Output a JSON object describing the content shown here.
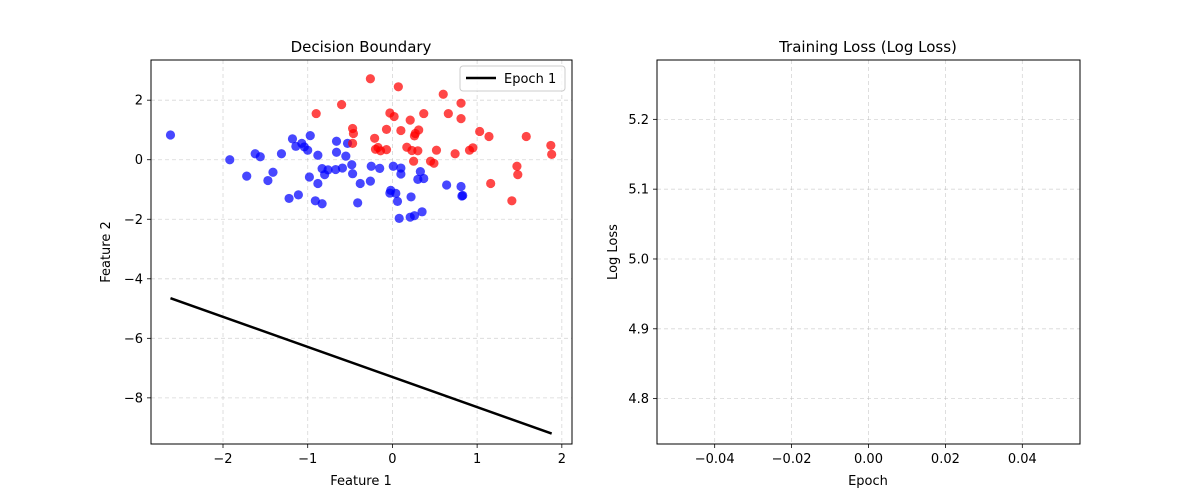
{
  "chart_data": [
    {
      "type": "scatter",
      "title": "Decision Boundary",
      "xlabel": "Feature 1",
      "ylabel": "Feature 2",
      "xlim": [
        -2.85,
        2.12
      ],
      "ylim": [
        -9.55,
        3.35
      ],
      "xticks": [
        -2,
        -1,
        0,
        1,
        2
      ],
      "yticks": [
        -8,
        -6,
        -4,
        -2,
        0,
        2
      ],
      "xtick_labels": [
        "−2",
        "−1",
        "0",
        "1",
        "2"
      ],
      "ytick_labels": [
        "−8",
        "−6",
        "−4",
        "−2",
        "0",
        "2"
      ],
      "grid": true,
      "legend": {
        "position": "top-right",
        "entries": [
          "Epoch 1"
        ]
      },
      "boundary_line": {
        "name": "Epoch 1",
        "color": "#000000",
        "x": [
          -2.62,
          1.88
        ],
        "y": [
          -4.65,
          -9.2
        ]
      },
      "series": [
        {
          "name": "class 0",
          "color": "#0000ff",
          "points": [
            [
              -2.62,
              0.83
            ],
            [
              -1.92,
              0.0
            ],
            [
              -1.72,
              -0.55
            ],
            [
              -1.62,
              0.2
            ],
            [
              -1.56,
              0.1
            ],
            [
              -1.47,
              -0.7
            ],
            [
              -1.41,
              -0.42
            ],
            [
              -1.31,
              0.2
            ],
            [
              -1.22,
              -1.3
            ],
            [
              -1.18,
              0.7
            ],
            [
              -1.14,
              0.45
            ],
            [
              -1.11,
              -1.18
            ],
            [
              -1.07,
              0.55
            ],
            [
              -1.04,
              0.43
            ],
            [
              -1.0,
              0.32
            ],
            [
              -0.97,
              0.81
            ],
            [
              -0.98,
              -0.58
            ],
            [
              -0.91,
              -1.38
            ],
            [
              -0.88,
              -0.8
            ],
            [
              -0.88,
              0.15
            ],
            [
              -0.83,
              -1.48
            ],
            [
              -0.83,
              -0.3
            ],
            [
              -0.8,
              -0.5
            ],
            [
              -0.76,
              -0.34
            ],
            [
              -0.67,
              -0.33
            ],
            [
              -0.66,
              0.25
            ],
            [
              -0.66,
              0.62
            ],
            [
              -0.59,
              -0.28
            ],
            [
              -0.55,
              0.12
            ],
            [
              -0.53,
              0.55
            ],
            [
              -0.48,
              -0.17
            ],
            [
              -0.47,
              -0.47
            ],
            [
              -0.41,
              -1.45
            ],
            [
              -0.38,
              -0.8
            ],
            [
              -0.26,
              -0.72
            ],
            [
              -0.25,
              -0.22
            ],
            [
              -0.15,
              -0.29
            ],
            [
              -0.03,
              -1.12
            ],
            [
              -0.02,
              -1.03
            ],
            [
              0.01,
              -0.22
            ],
            [
              0.04,
              -1.13
            ],
            [
              0.06,
              -1.4
            ],
            [
              0.08,
              -1.97
            ],
            [
              0.1,
              -0.28
            ],
            [
              0.1,
              -0.48
            ],
            [
              0.21,
              -1.93
            ],
            [
              0.22,
              -1.25
            ],
            [
              0.26,
              -1.88
            ],
            [
              0.3,
              -0.66
            ],
            [
              0.33,
              -0.4
            ],
            [
              0.35,
              -1.75
            ],
            [
              0.37,
              -0.63
            ],
            [
              0.64,
              -0.85
            ],
            [
              0.81,
              -0.9
            ],
            [
              0.82,
              -1.22
            ],
            [
              0.83,
              -1.2
            ]
          ]
        },
        {
          "name": "class 1",
          "color": "#ff0000",
          "points": [
            [
              -0.9,
              1.55
            ],
            [
              -0.6,
              1.85
            ],
            [
              -0.47,
              1.05
            ],
            [
              -0.46,
              0.88
            ],
            [
              -0.47,
              0.55
            ],
            [
              -0.26,
              2.72
            ],
            [
              -0.21,
              0.72
            ],
            [
              -0.2,
              0.35
            ],
            [
              -0.17,
              0.41
            ],
            [
              -0.14,
              0.3
            ],
            [
              -0.07,
              0.34
            ],
            [
              -0.07,
              1.02
            ],
            [
              -0.03,
              1.57
            ],
            [
              0.02,
              1.45
            ],
            [
              0.07,
              2.45
            ],
            [
              0.1,
              0.98
            ],
            [
              0.17,
              0.42
            ],
            [
              0.21,
              1.33
            ],
            [
              0.23,
              0.31
            ],
            [
              0.25,
              -0.05
            ],
            [
              0.26,
              0.8
            ],
            [
              0.27,
              0.88
            ],
            [
              0.3,
              0.3
            ],
            [
              0.31,
              1.0
            ],
            [
              0.37,
              1.55
            ],
            [
              0.45,
              -0.05
            ],
            [
              0.49,
              -0.12
            ],
            [
              0.52,
              0.32
            ],
            [
              0.6,
              2.2
            ],
            [
              0.66,
              1.55
            ],
            [
              0.74,
              0.2
            ],
            [
              0.81,
              1.9
            ],
            [
              0.81,
              1.38
            ],
            [
              0.91,
              0.32
            ],
            [
              0.95,
              0.4
            ],
            [
              1.03,
              0.95
            ],
            [
              1.14,
              0.78
            ],
            [
              1.16,
              -0.8
            ],
            [
              1.41,
              -1.38
            ],
            [
              1.47,
              -0.22
            ],
            [
              1.48,
              -0.5
            ],
            [
              1.58,
              0.78
            ],
            [
              1.87,
              0.48
            ],
            [
              1.88,
              0.18
            ]
          ]
        }
      ]
    },
    {
      "type": "line",
      "title": "Training Loss (Log Loss)",
      "xlabel": "Epoch",
      "ylabel": "Log Loss",
      "xlim": [
        -0.055,
        0.055
      ],
      "ylim": [
        4.735,
        5.285
      ],
      "xticks": [
        -0.04,
        -0.02,
        0.0,
        0.02,
        0.04
      ],
      "yticks": [
        4.8,
        4.9,
        5.0,
        5.1,
        5.2
      ],
      "xtick_labels": [
        "−0.04",
        "−0.02",
        "0.00",
        "0.02",
        "0.04"
      ],
      "ytick_labels": [
        "4.8",
        "4.9",
        "5.0",
        "5.1",
        "5.2"
      ],
      "grid": true,
      "series": []
    }
  ]
}
